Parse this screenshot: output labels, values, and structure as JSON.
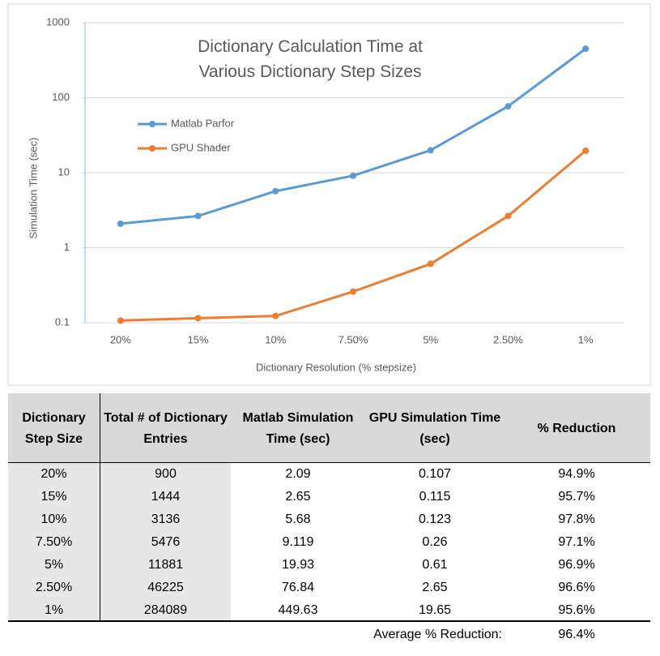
{
  "chart_data": {
    "type": "line",
    "title": "Dictionary Calculation Time at Various Dictionary Step Sizes",
    "x_label": "Dictionary Resolution (% stepsize)",
    "y_label": "Simulation Time (sec)",
    "categories": [
      "20%",
      "15%",
      "10%",
      "7.50%",
      "5%",
      "2.50%",
      "1%"
    ],
    "series": [
      {
        "name": "Matlab Parfor",
        "color": "#5b9bd5",
        "values": [
          2.09,
          2.65,
          5.68,
          9.119,
          19.93,
          76.84,
          449.63
        ]
      },
      {
        "name": "GPU Shader",
        "color": "#ed7d31",
        "values": [
          0.107,
          0.115,
          0.123,
          0.26,
          0.61,
          2.65,
          19.65
        ]
      }
    ],
    "ylim": [
      0.1,
      1000
    ],
    "yticks": [
      0.1,
      1,
      10,
      100,
      1000
    ],
    "y_scale": "log",
    "grid": true,
    "legend": "upper left"
  },
  "table": {
    "header": [
      "Dictionary Step Size",
      "Total # of Dictionary Entries",
      "Matlab Simulation Time (sec)",
      "GPU Simulation Time (sec)",
      "% Reduction"
    ],
    "rows": [
      [
        "20%",
        "900",
        "2.09",
        "0.107",
        "94.9%"
      ],
      [
        "15%",
        "1444",
        "2.65",
        "0.115",
        "95.7%"
      ],
      [
        "10%",
        "3136",
        "5.68",
        "0.123",
        "97.8%"
      ],
      [
        "7.50%",
        "5476",
        "9.119",
        "0.26",
        "97.1%"
      ],
      [
        "5%",
        "11881",
        "19.93",
        "0.61",
        "96.9%"
      ],
      [
        "2.50%",
        "46225",
        "76.84",
        "2.65",
        "96.6%"
      ],
      [
        "1%",
        "284089",
        "449.63",
        "19.65",
        "95.6%"
      ]
    ],
    "footer": [
      "Average % Reduction:",
      "96.4%"
    ]
  }
}
